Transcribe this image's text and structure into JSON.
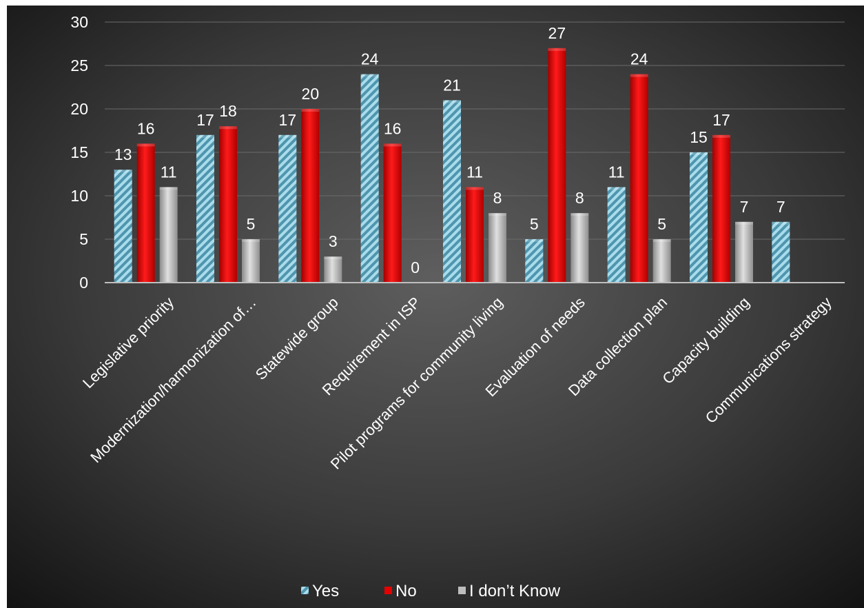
{
  "chart_data": {
    "type": "bar",
    "title": "",
    "xlabel": "",
    "ylabel": "",
    "ylim": [
      0,
      30
    ],
    "yticks": [
      0,
      5,
      10,
      15,
      20,
      25,
      30
    ],
    "grid": true,
    "legend_position": "bottom",
    "categories": [
      "Legislative priority",
      "Modernization/harmonization of…",
      "Statewide group",
      "Requirement in ISP",
      "Pilot programs for community living",
      "Evaluation of needs",
      "Data collection plan",
      "Capacity building",
      "Communications strategy"
    ],
    "series": [
      {
        "name": "Yes",
        "color": "#8ecfe0",
        "pattern": "diagonal-hatch",
        "values": [
          13,
          17,
          17,
          24,
          21,
          5,
          11,
          15,
          7
        ]
      },
      {
        "name": "No",
        "color": "#e60000",
        "values": [
          16,
          18,
          20,
          16,
          11,
          27,
          24,
          17,
          null
        ]
      },
      {
        "name": "I don’t Know",
        "color": "#b8b8b8",
        "values": [
          11,
          5,
          3,
          0,
          8,
          8,
          5,
          7,
          null
        ]
      }
    ]
  },
  "colors": {
    "background_center": "#5c5c5c",
    "background_edge": "#141414",
    "gridline": "#6b6b6b",
    "axis": "#bfbfbf",
    "text": "#ffffff"
  }
}
